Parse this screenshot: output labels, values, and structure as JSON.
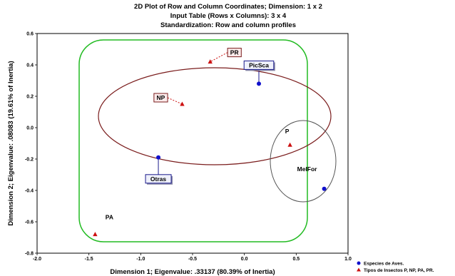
{
  "chart_data": {
    "type": "scatter",
    "title_lines": [
      "2D Plot of Row and Column Coordinates; Dimension:  1 x  2",
      "Input Table (Rows x Columns): 3 x 4",
      "Standardization: Row and column profiles"
    ],
    "xlabel": "Dimension 1; Eigenvalue: .33137 (80.39% of Inertia)",
    "ylabel": "Dimension 2; Eigenvalue: .08083 (19.61% of Inertia)",
    "xlim": [
      -2.0,
      1.0
    ],
    "ylim": [
      -0.8,
      0.6
    ],
    "xticks": [
      "-2.0",
      "-1.5",
      "-1.0",
      "-0.5",
      "0.0",
      "0.5",
      "1.0"
    ],
    "yticks": [
      "0.6",
      "0.4",
      "0.2",
      "0.0",
      "-0.2",
      "-0.4",
      "-0.6",
      "-0.8"
    ],
    "series": [
      {
        "name": "Especies de Aves.",
        "marker": "circle",
        "color": "#1010cc",
        "points": [
          {
            "label": "PicSca",
            "x": 0.14,
            "y": 0.28
          },
          {
            "label": "Otras",
            "x": -0.83,
            "y": -0.19
          },
          {
            "label": "MelFor",
            "x": 0.77,
            "y": -0.39
          }
        ]
      },
      {
        "name": "Tipos de Insectos P, NP, PA, PR.",
        "marker": "triangle",
        "color": "#cc1010",
        "points": [
          {
            "label": "PR",
            "x": -0.33,
            "y": 0.42
          },
          {
            "label": "NP",
            "x": -0.6,
            "y": 0.15
          },
          {
            "label": "P",
            "x": 0.44,
            "y": -0.11
          },
          {
            "label": "PA",
            "x": -1.44,
            "y": -0.68
          }
        ]
      }
    ],
    "legend_position": "bottom-right"
  }
}
